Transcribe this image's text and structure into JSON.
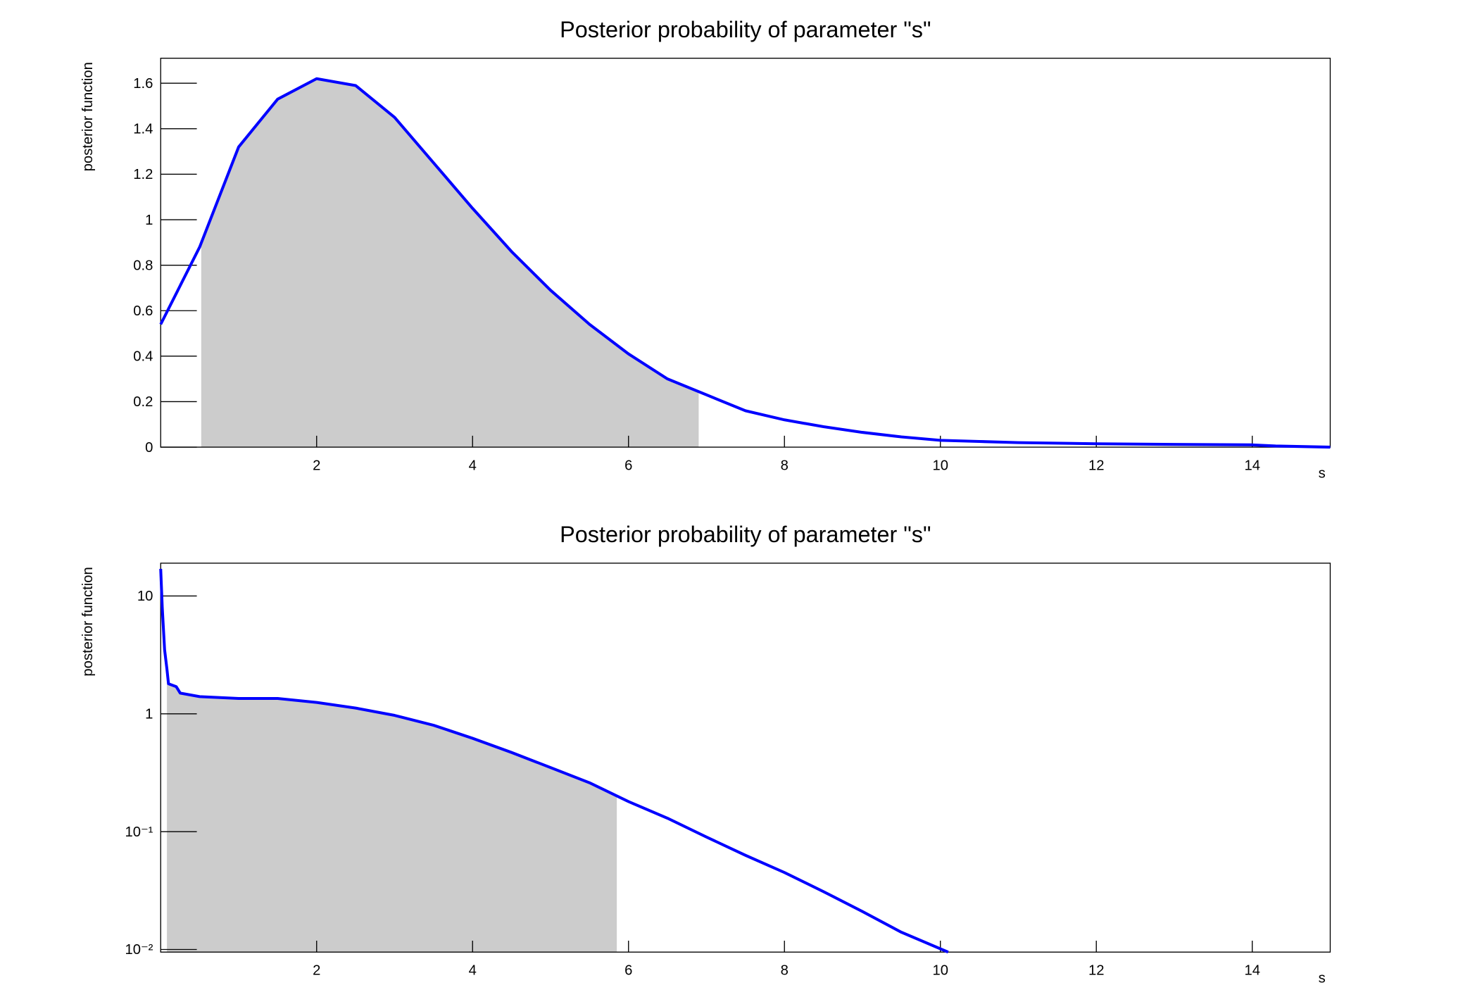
{
  "chart_data": [
    {
      "type": "line",
      "title": "Posterior probability of parameter \"s\"",
      "x_label": "s",
      "y_label": "posterior function",
      "xlim": [
        0,
        15
      ],
      "ylim": [
        0,
        1.71
      ],
      "xticks": [
        2,
        4,
        6,
        8,
        10,
        12,
        14
      ],
      "yticks": [
        0,
        0.2,
        0.4,
        0.6,
        0.8,
        1,
        1.2,
        1.4,
        1.6
      ],
      "log_y": false,
      "interval": [
        0.52,
        6.9
      ],
      "interval_color": "#cccccc",
      "x": [
        0,
        0.5,
        1,
        1.5,
        2,
        2.5,
        3,
        3.5,
        4,
        4.5,
        5,
        5.5,
        6,
        6.5,
        7,
        7.5,
        8,
        8.5,
        9,
        9.5,
        10,
        10.5,
        11,
        12,
        13,
        14,
        14.3,
        15
      ],
      "series": [
        {
          "color": "#0000ff",
          "values": [
            0.54,
            0.88,
            1.32,
            1.53,
            1.62,
            1.59,
            1.45,
            1.25,
            1.05,
            0.86,
            0.69,
            0.54,
            0.41,
            0.3,
            0.23,
            0.16,
            0.12,
            0.09,
            0.065,
            0.045,
            0.03,
            0.025,
            0.02,
            0.015,
            0.012,
            0.01,
            0.005,
            0
          ]
        }
      ]
    },
    {
      "type": "line",
      "title": "Posterior probability of parameter \"s\"",
      "x_label": "s",
      "y_label": "posterior function",
      "xlim": [
        0,
        15
      ],
      "ylim": [
        0.0095,
        19
      ],
      "xticks": [
        2,
        4,
        6,
        8,
        10,
        12,
        14
      ],
      "yticks": [
        {
          "value": 0.01,
          "label": "10⁻²"
        },
        {
          "value": 0.1,
          "label": "10⁻¹"
        },
        1,
        10
      ],
      "log_y": true,
      "interval": [
        0.08,
        5.85
      ],
      "interval_color": "#cccccc",
      "x": [
        0,
        0.02,
        0.05,
        0.08,
        0.1,
        0.2,
        0.25,
        0.5,
        1,
        1.5,
        2,
        2.5,
        3,
        3.5,
        4,
        4.5,
        5,
        5.5,
        6,
        6.5,
        7,
        7.5,
        8,
        8.5,
        9,
        9.5,
        10.1
      ],
      "series": [
        {
          "color": "#0000ff",
          "values": [
            17,
            8,
            3.5,
            2.4,
            1.8,
            1.7,
            1.5,
            1.4,
            1.35,
            1.35,
            1.25,
            1.12,
            0.97,
            0.8,
            0.62,
            0.47,
            0.35,
            0.26,
            0.18,
            0.13,
            0.09,
            0.063,
            0.045,
            0.031,
            0.021,
            0.014,
            0.0095
          ]
        }
      ]
    }
  ]
}
